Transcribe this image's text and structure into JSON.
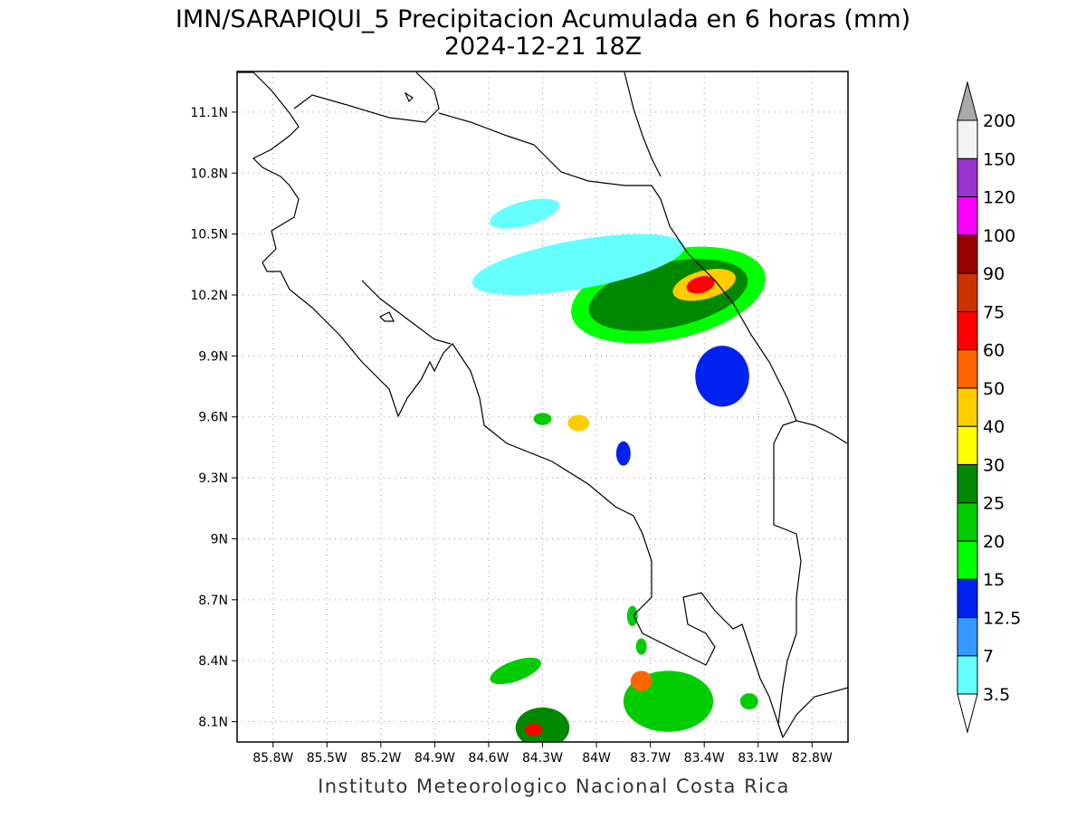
{
  "title": {
    "line1": "IMN/SARAPIQUI_5 Precipitacion Acumulada en 6 horas (mm)",
    "line2": "2024-12-21 18Z"
  },
  "credit": "Instituto Meteorologico Nacional Costa Rica",
  "map": {
    "lon_range": [
      -86.0,
      -82.6
    ],
    "lat_range": [
      8.0,
      11.3
    ],
    "x_ticks": [
      {
        "value": -85.8,
        "label": "85.8W"
      },
      {
        "value": -85.5,
        "label": "85.5W"
      },
      {
        "value": -85.2,
        "label": "85.2W"
      },
      {
        "value": -84.9,
        "label": "84.9W"
      },
      {
        "value": -84.6,
        "label": "84.6W"
      },
      {
        "value": -84.3,
        "label": "84.3W"
      },
      {
        "value": -84.0,
        "label": "84W"
      },
      {
        "value": -83.7,
        "label": "83.7W"
      },
      {
        "value": -83.4,
        "label": "83.4W"
      },
      {
        "value": -83.1,
        "label": "83.1W"
      },
      {
        "value": -82.8,
        "label": "82.8W"
      }
    ],
    "y_ticks": [
      {
        "value": 11.1,
        "label": "11.1N"
      },
      {
        "value": 10.8,
        "label": "10.8N"
      },
      {
        "value": 10.5,
        "label": "10.5N"
      },
      {
        "value": 10.2,
        "label": "10.2N"
      },
      {
        "value": 9.9,
        "label": "9.9N"
      },
      {
        "value": 9.6,
        "label": "9.6N"
      },
      {
        "value": 9.3,
        "label": "9.3N"
      },
      {
        "value": 9.0,
        "label": "9N"
      },
      {
        "value": 8.7,
        "label": "8.7N"
      },
      {
        "value": 8.4,
        "label": "8.4N"
      },
      {
        "value": 8.1,
        "label": "8.1N"
      }
    ],
    "grid": "dotted"
  },
  "colorbar": {
    "levels": [
      {
        "label": "3.5",
        "color": "#66ffff"
      },
      {
        "label": "7",
        "color": "#3399ff"
      },
      {
        "label": "12.5",
        "color": "#0022ee"
      },
      {
        "label": "15",
        "color": "#00ff00"
      },
      {
        "label": "20",
        "color": "#00cc00"
      },
      {
        "label": "25",
        "color": "#008800"
      },
      {
        "label": "30",
        "color": "#ffff00"
      },
      {
        "label": "40",
        "color": "#ffcc00"
      },
      {
        "label": "50",
        "color": "#ff6600"
      },
      {
        "label": "60",
        "color": "#ff0000"
      },
      {
        "label": "75",
        "color": "#cc3300"
      },
      {
        "label": "90",
        "color": "#990000"
      },
      {
        "label": "100",
        "color": "#ff00ff"
      },
      {
        "label": "120",
        "color": "#9933cc"
      },
      {
        "label": "150",
        "color": "#f4f4f4"
      },
      {
        "label": "200",
        "color": "#aaaaaa"
      }
    ],
    "over_color": "#aaaaaa",
    "under_color": "#ffffff"
  },
  "precip_cells": [
    {
      "lon": -83.6,
      "lat": 10.2,
      "rx": 0.55,
      "ry": 0.22,
      "rot": -12,
      "level": 3
    },
    {
      "lon": -83.6,
      "lat": 10.2,
      "rx": 0.45,
      "ry": 0.16,
      "rot": -12,
      "level": 5
    },
    {
      "lon": -83.4,
      "lat": 10.25,
      "rx": 0.18,
      "ry": 0.07,
      "rot": -15,
      "level": 7
    },
    {
      "lon": -83.42,
      "lat": 10.25,
      "rx": 0.08,
      "ry": 0.04,
      "rot": -15,
      "level": 9
    },
    {
      "lon": -84.1,
      "lat": 10.35,
      "rx": 0.6,
      "ry": 0.12,
      "rot": -10,
      "level": 0
    },
    {
      "lon": -83.3,
      "lat": 9.8,
      "rx": 0.15,
      "ry": 0.15,
      "rot": 0,
      "level": 2
    },
    {
      "lon": -84.4,
      "lat": 10.6,
      "rx": 0.2,
      "ry": 0.06,
      "rot": -15,
      "level": 0
    },
    {
      "lon": -84.1,
      "lat": 9.57,
      "rx": 0.06,
      "ry": 0.04,
      "rot": 0,
      "level": 7
    },
    {
      "lon": -84.3,
      "lat": 9.59,
      "rx": 0.05,
      "ry": 0.03,
      "rot": 0,
      "level": 4
    },
    {
      "lon": -83.85,
      "lat": 9.42,
      "rx": 0.04,
      "ry": 0.06,
      "rot": 0,
      "level": 2
    },
    {
      "lon": -83.6,
      "lat": 8.2,
      "rx": 0.25,
      "ry": 0.15,
      "rot": 0,
      "level": 4
    },
    {
      "lon": -83.75,
      "lat": 8.3,
      "rx": 0.06,
      "ry": 0.05,
      "rot": 0,
      "level": 8
    },
    {
      "lon": -84.3,
      "lat": 8.07,
      "rx": 0.15,
      "ry": 0.1,
      "rot": 0,
      "level": 5
    },
    {
      "lon": -84.35,
      "lat": 8.06,
      "rx": 0.05,
      "ry": 0.03,
      "rot": 0,
      "level": 9
    },
    {
      "lon": -84.45,
      "lat": 8.35,
      "rx": 0.15,
      "ry": 0.05,
      "rot": -20,
      "level": 4
    },
    {
      "lon": -83.15,
      "lat": 8.2,
      "rx": 0.05,
      "ry": 0.04,
      "rot": 0,
      "level": 4
    },
    {
      "lon": -83.8,
      "lat": 8.62,
      "rx": 0.03,
      "ry": 0.05,
      "rot": 0,
      "level": 4
    },
    {
      "lon": -83.75,
      "lat": 8.47,
      "rx": 0.03,
      "ry": 0.04,
      "rot": 0,
      "level": 4
    }
  ]
}
